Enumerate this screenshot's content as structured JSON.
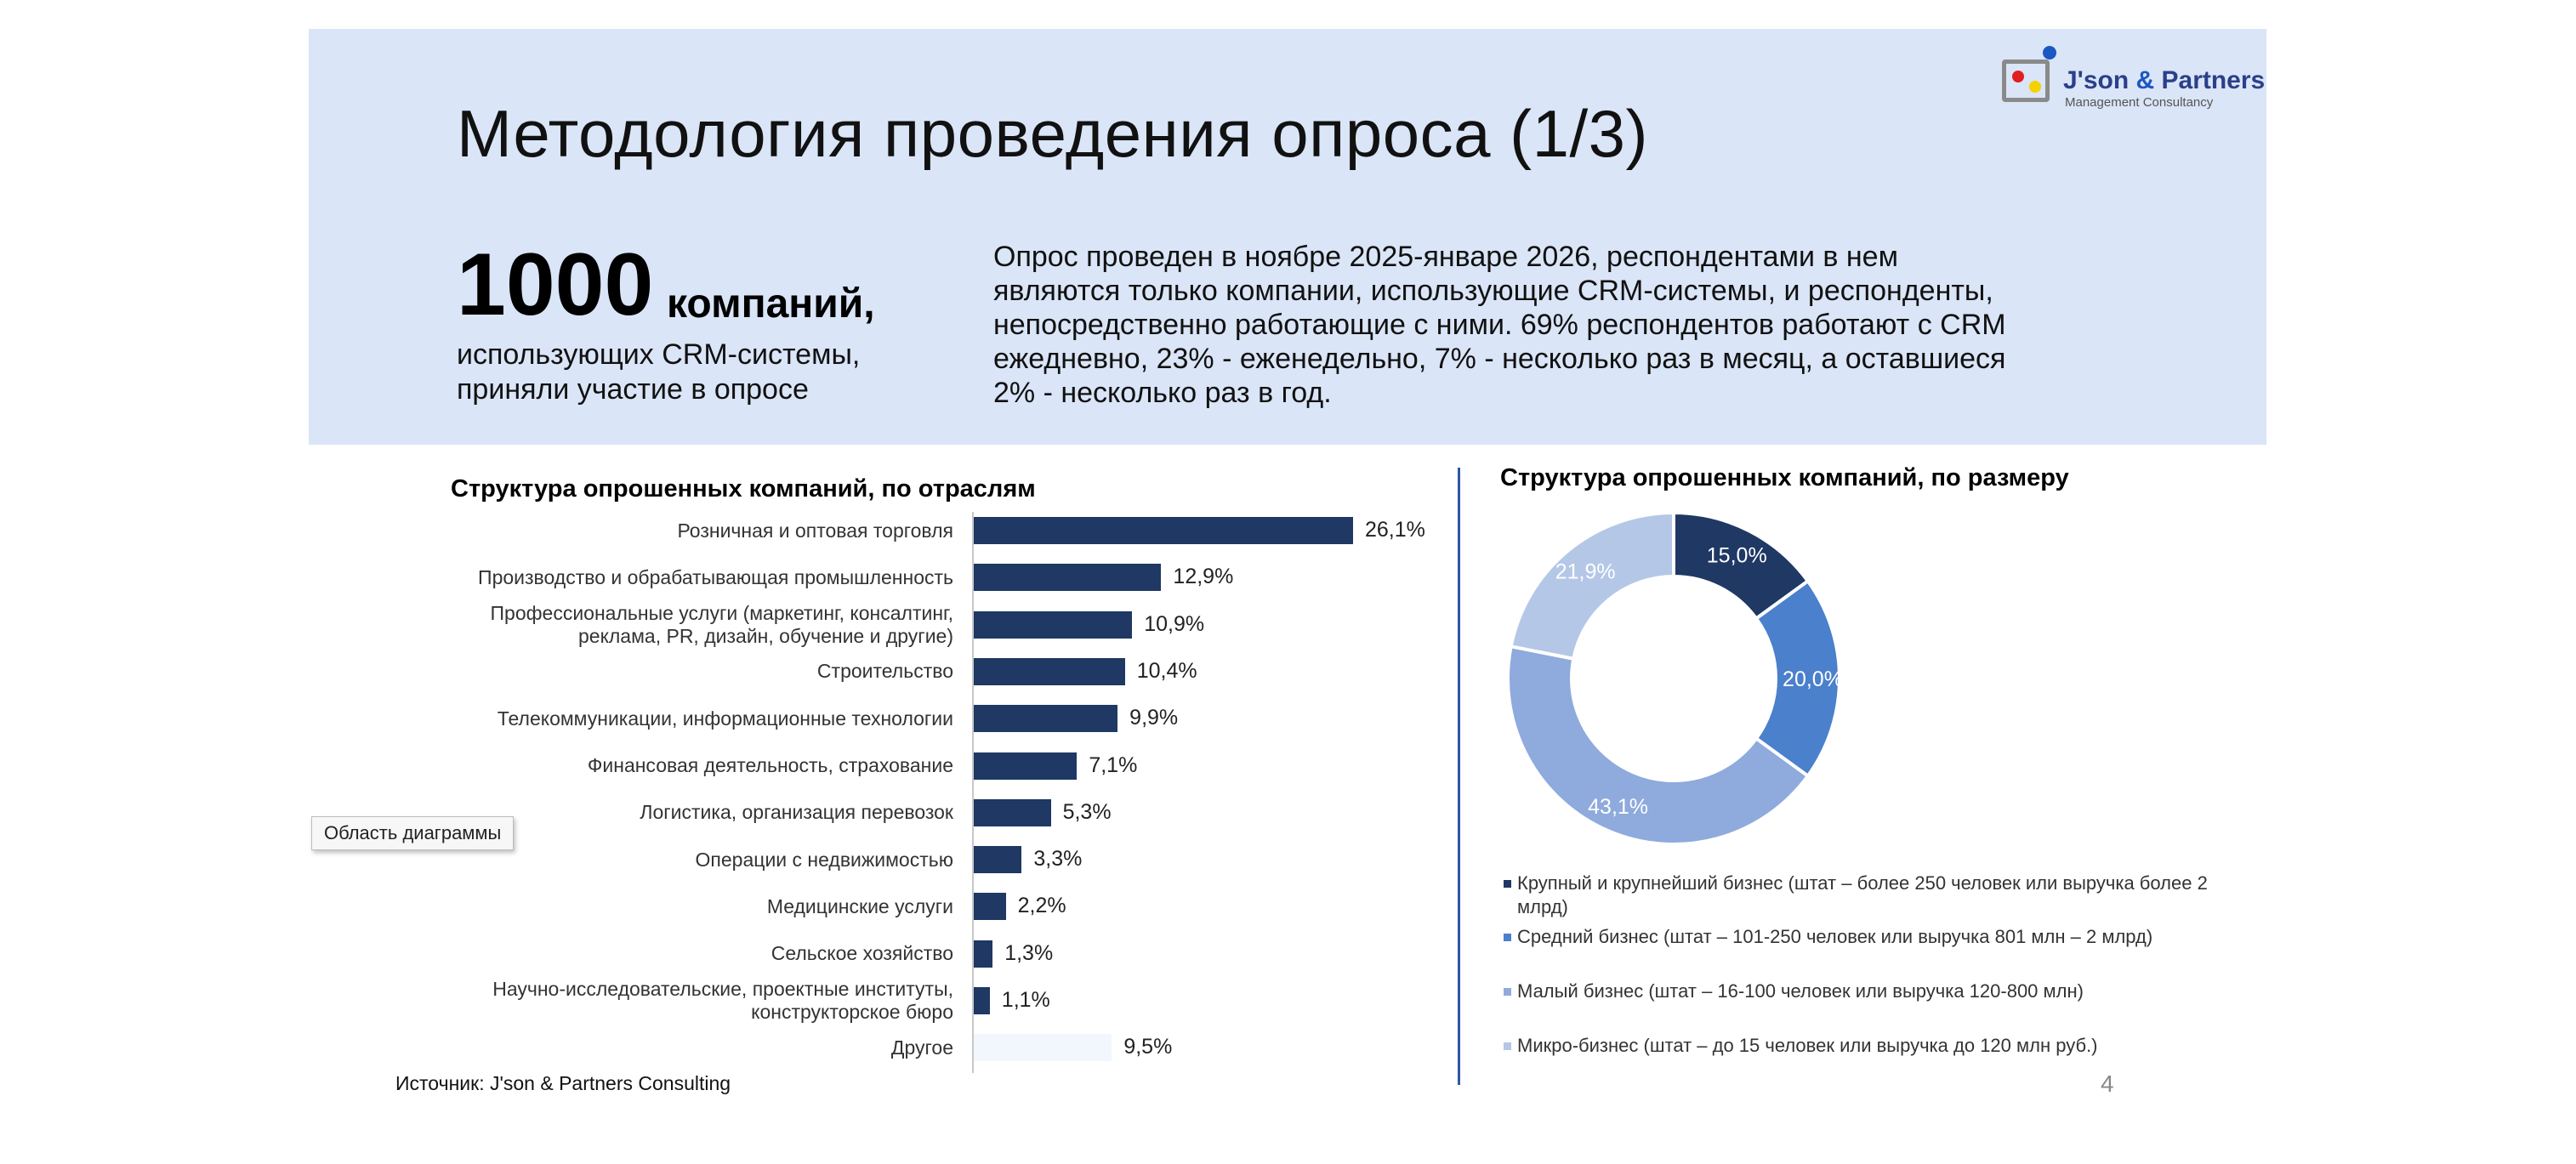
{
  "slide": {
    "title": "Методология проведения опроса (1/3)",
    "logo": {
      "name_part1": "J'son",
      "name_amp": " & ",
      "name_part2": "Partners",
      "subtitle": "Management Consultancy"
    },
    "stat_number": "1000",
    "stat_word": "компаний,",
    "stat_caption": "использующих CRM-системы,\nприняли участие в опросе",
    "description": "Опрос проведен в ноябре 2025-январе 2026, респондентами в нем\nявляются только компании, использующие CRM-системы, и респонденты,\nнепосредственно работающие с ними. 69% респондентов работают с CRM\nежедневно, 23% - еженедельно, 7% - несколько раз в месяц, а оставшиеся\n2% - несколько раз в год.",
    "tooltip": "Область диаграммы",
    "source": "Источник: J'son & Partners Consulting",
    "page_number": "4"
  },
  "colors": {
    "band": "#dae5f7",
    "bar": "#1f3864",
    "bar_other": "#f2f7fd",
    "donut": [
      "#1f3864",
      "#4a80cc",
      "#8faadc",
      "#b4c7e7"
    ]
  },
  "chart_data": [
    {
      "type": "bar",
      "orientation": "horizontal",
      "title": "Структура опрошенных компаний, по отраслям",
      "categories": [
        "Розничная и оптовая торговля",
        "Производство и обрабатывающая промышленность",
        "Профессиональные услуги (маркетинг, консалтинг,\nреклама, PR, дизайн, обучение и другие)",
        "Строительство",
        "Телекоммуникации, информационные технологии",
        "Финансовая деятельность, страхование",
        "Логистика, организация перевозок",
        "Операции с недвижимостью",
        "Медицинские услуги",
        "Сельское хозяйство",
        "Научно-исследовательские, проектные институты,\nконструкторское бюро",
        "Другое"
      ],
      "values": [
        26.1,
        12.9,
        10.9,
        10.4,
        9.9,
        7.1,
        5.3,
        3.3,
        2.2,
        1.3,
        1.1,
        9.5
      ],
      "labels": [
        "26,1%",
        "12,9%",
        "10,9%",
        "10,4%",
        "9,9%",
        "7,1%",
        "5,3%",
        "3,3%",
        "2,2%",
        "1,3%",
        "1,1%",
        "9,5%"
      ],
      "unit": "%",
      "xlim": [
        0,
        26.1
      ]
    },
    {
      "type": "pie",
      "variant": "donut",
      "title": "Структура опрошенных компаний, по размеру",
      "categories": [
        "Крупный и крупнейший бизнес (штат – более 250 человек или выручка более 2 млрд)",
        "Средний бизнес (штат – 101-250 человек или выручка 801 млн – 2 млрд)",
        "Малый бизнес (штат  – 16-100 человек или выручка 120-800 млн)",
        "Микро-бизнес (штат – до 15 человек или выручка до 120 млн руб.)"
      ],
      "values": [
        15.0,
        20.0,
        43.1,
        21.9
      ],
      "labels": [
        "15,0%",
        "20,0%",
        "43,1%",
        "21,9%"
      ],
      "unit": "%",
      "legend_position": "bottom"
    }
  ]
}
